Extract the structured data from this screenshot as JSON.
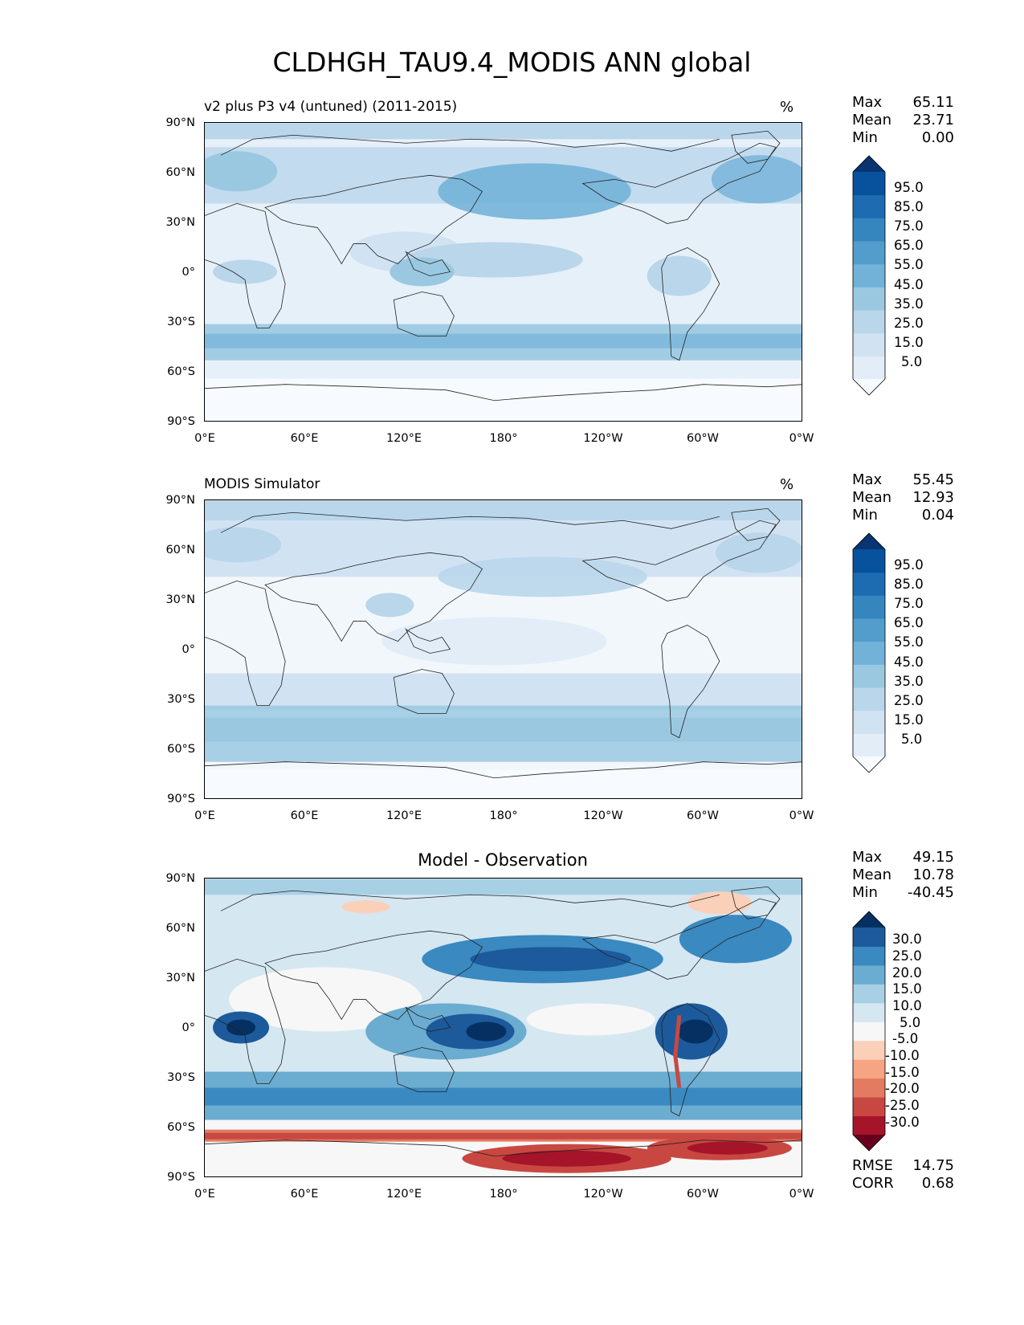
{
  "figure": {
    "title": "CLDHGH_TAU9.4_MODIS ANN global"
  },
  "axes": {
    "lat_labels": [
      "90°N",
      "60°N",
      "30°N",
      "0°",
      "30°S",
      "60°S",
      "90°S"
    ],
    "lon_labels": [
      "0°E",
      "60°E",
      "120°E",
      "180°",
      "120°W",
      "60°W",
      "0°W"
    ]
  },
  "panels": [
    {
      "subtitle": "v2 plus P3 v4 (untuned) (2011-2015)",
      "units": "%",
      "stats": [
        {
          "label": "Max",
          "value": "65.11"
        },
        {
          "label": "Mean",
          "value": "23.71"
        },
        {
          "label": "Min",
          "value": "0.00"
        }
      ],
      "colorbar": {
        "labels": [
          "95.0",
          "85.0",
          "75.0",
          "65.0",
          "55.0",
          "45.0",
          "35.0",
          "25.0",
          "15.0",
          "5.0"
        ],
        "colors": [
          "#f7fbff",
          "#e2edf8",
          "#d1e3f3",
          "#bad6eb",
          "#9ac8e0",
          "#73b2d8",
          "#529dcc",
          "#3585bf",
          "#1d6cb1",
          "#08519c",
          "#083471"
        ]
      }
    },
    {
      "subtitle": "MODIS Simulator",
      "units": "%",
      "stats": [
        {
          "label": "Max",
          "value": "55.45"
        },
        {
          "label": "Mean",
          "value": "12.93"
        },
        {
          "label": "Min",
          "value": "0.04"
        }
      ],
      "colorbar": {
        "labels": [
          "95.0",
          "85.0",
          "75.0",
          "65.0",
          "55.0",
          "45.0",
          "35.0",
          "25.0",
          "15.0",
          "5.0"
        ],
        "colors": [
          "#f7fbff",
          "#e2edf8",
          "#d1e3f3",
          "#bad6eb",
          "#9ac8e0",
          "#73b2d8",
          "#529dcc",
          "#3585bf",
          "#1d6cb1",
          "#08519c",
          "#083471"
        ]
      }
    },
    {
      "title": "Model - Observation",
      "stats": [
        {
          "label": "Max",
          "value": "49.15"
        },
        {
          "label": "Mean",
          "value": "10.78"
        },
        {
          "label": "Min",
          "value": "-40.45"
        }
      ],
      "colorbar": {
        "labels": [
          "30.0",
          "25.0",
          "20.0",
          "15.0",
          "10.0",
          "5.0",
          "-5.0",
          "-10.0",
          "-15.0",
          "-20.0",
          "-25.0",
          "-30.0"
        ],
        "colors": [
          "#67001f",
          "#a51429",
          "#c94741",
          "#e27b62",
          "#f6a482",
          "#fbd0b9",
          "#f7f7f7",
          "#d5e7f1",
          "#a7d0e4",
          "#6bacd1",
          "#3a89c0",
          "#1c5a9c",
          "#053061"
        ]
      },
      "metrics": [
        {
          "label": "RMSE",
          "value": "14.75"
        },
        {
          "label": "CORR",
          "value": "0.68"
        }
      ]
    }
  ]
}
